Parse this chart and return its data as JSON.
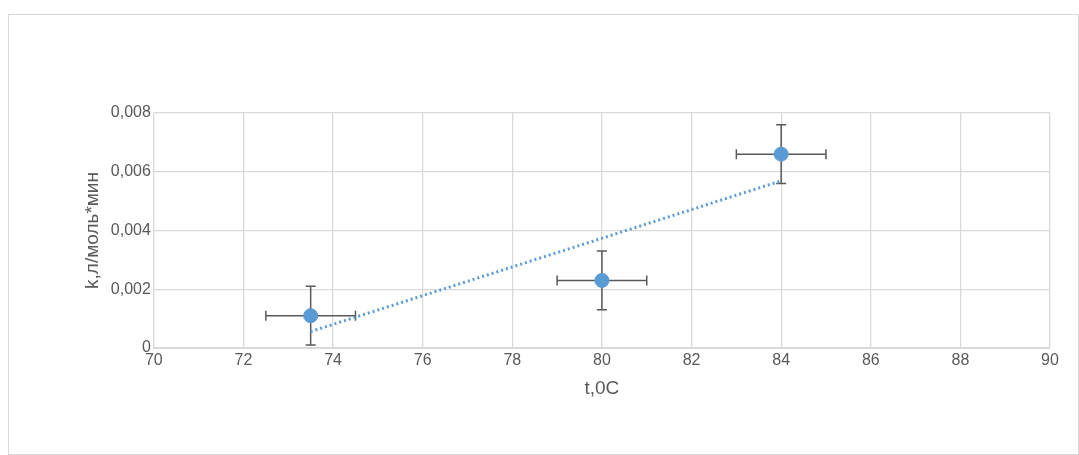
{
  "chart_data": {
    "type": "scatter",
    "xlabel": "t,0C",
    "ylabel": "k,л/моль*мин",
    "xlim": [
      70,
      90
    ],
    "xticks": [
      70,
      72,
      74,
      76,
      78,
      80,
      82,
      84,
      86,
      88,
      90
    ],
    "ylim": [
      0,
      0.008
    ],
    "yticks": [
      {
        "value": 0,
        "label": "0"
      },
      {
        "value": 0.002,
        "label": "0,002"
      },
      {
        "value": 0.004,
        "label": "0,004"
      },
      {
        "value": 0.006,
        "label": "0,006"
      },
      {
        "value": 0.008,
        "label": "0,008"
      }
    ],
    "grid": true,
    "legend": false,
    "series": [
      {
        "type": "scatter",
        "color": "#5b9bd5",
        "marker": "circle",
        "x": [
          73.5,
          80,
          84
        ],
        "values": [
          0.0011,
          0.0023,
          0.0066
        ],
        "errors": [
          0.001,
          0.001,
          0.001
        ],
        "xerrors": [
          1,
          1,
          1
        ]
      },
      {
        "type": "line",
        "color": "#5b9bd5",
        "marker": "none",
        "line_style": "dotted",
        "x": [
          73.5,
          84
        ],
        "values": [
          0.00056,
          0.00569
        ]
      }
    ]
  }
}
